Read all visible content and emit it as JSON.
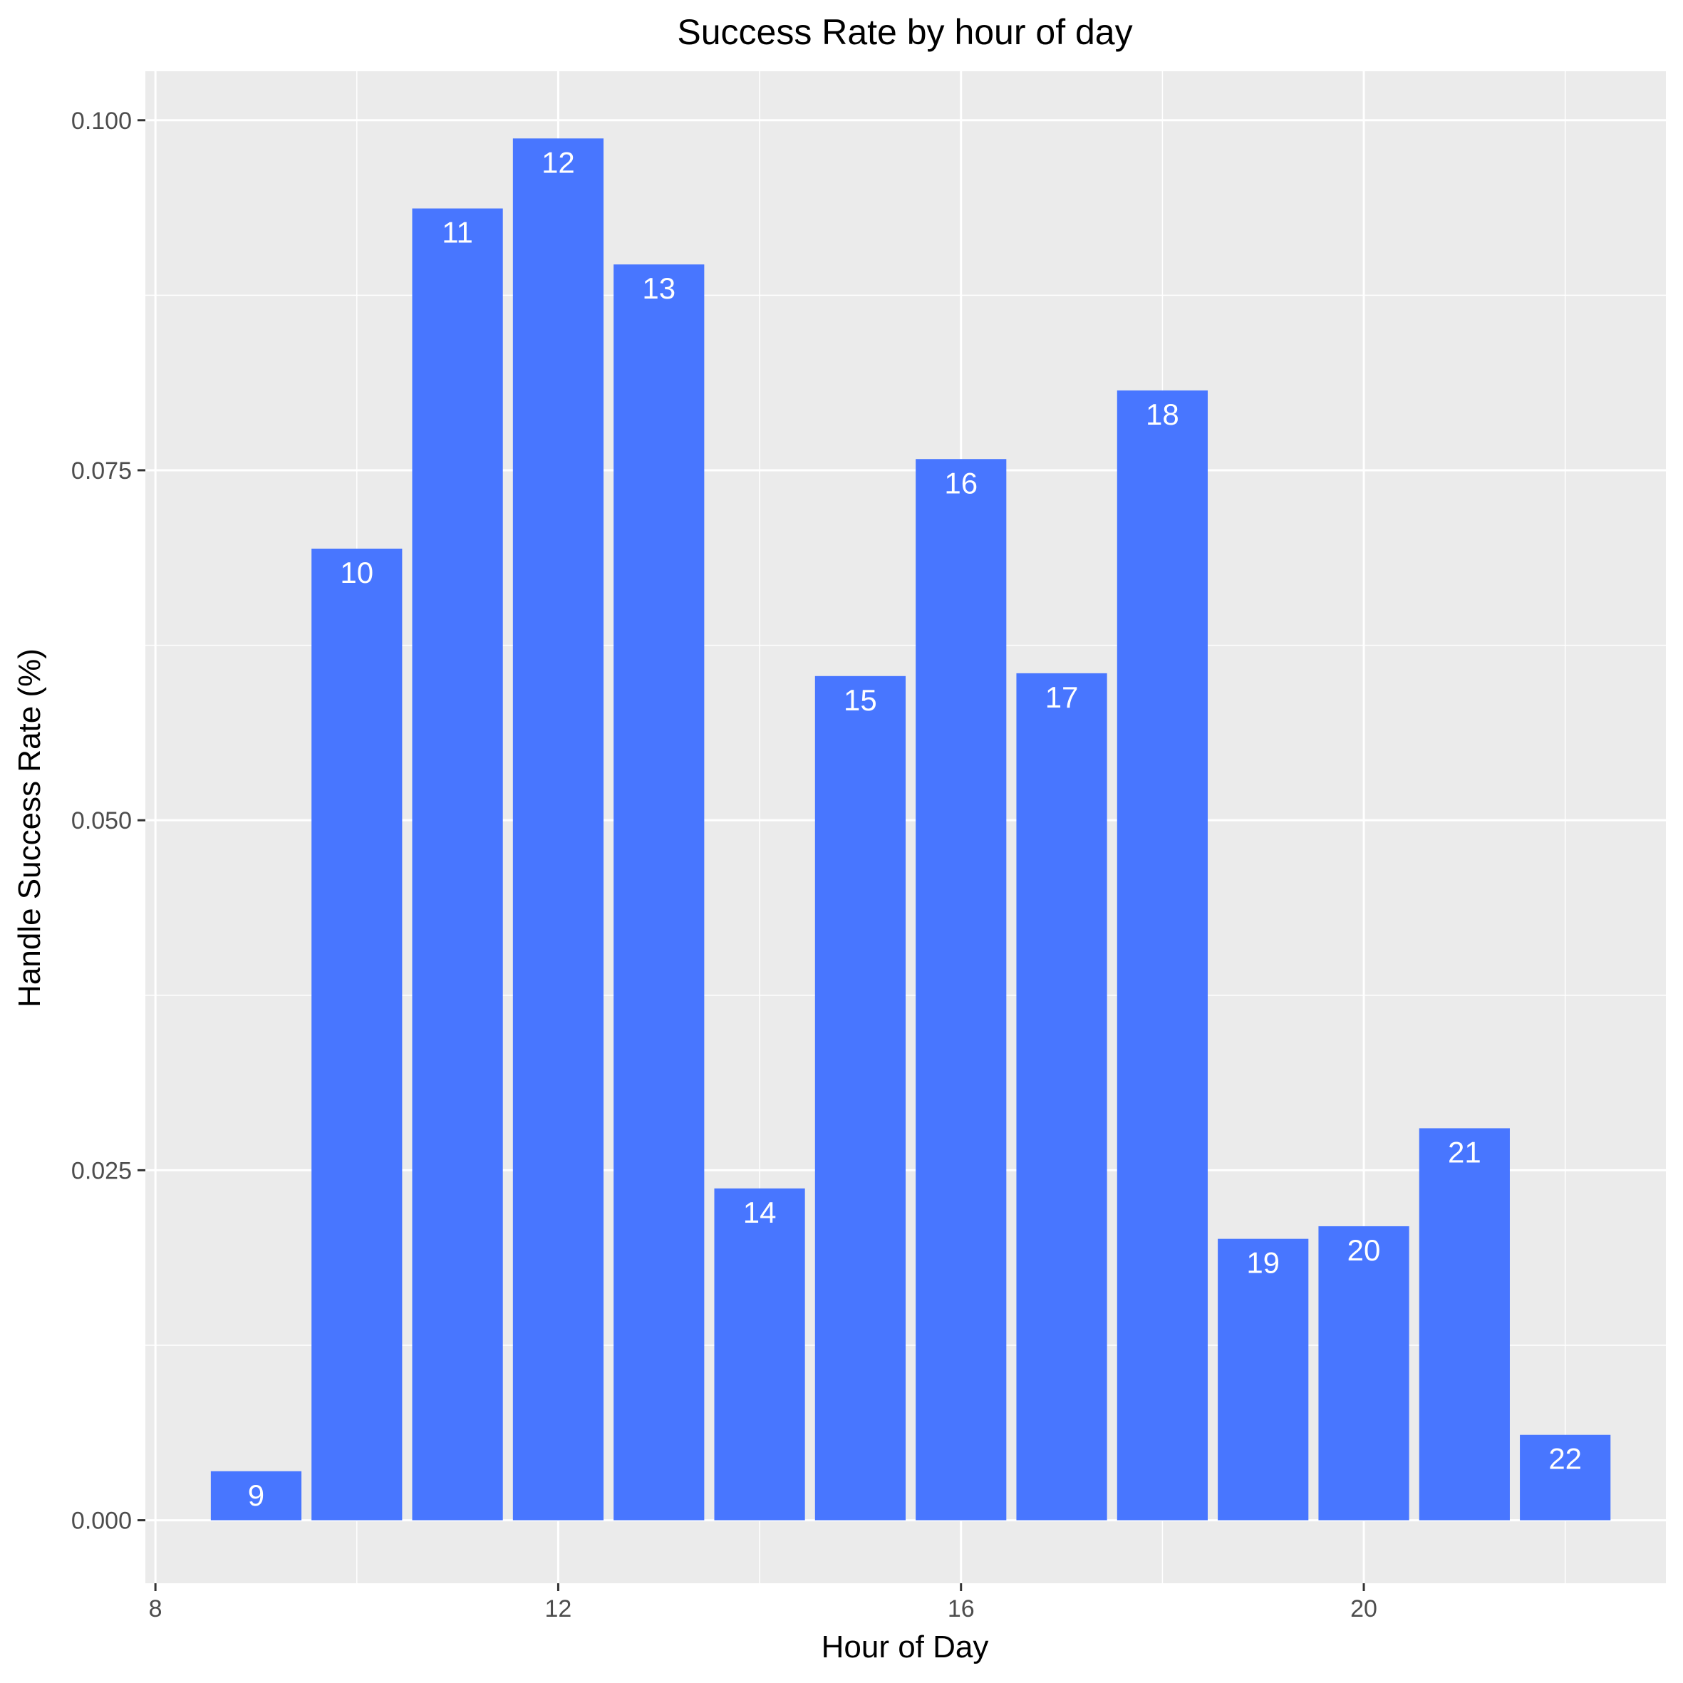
{
  "chart_data": {
    "type": "bar",
    "title": "Success Rate by hour of day",
    "xlabel": "Hour of Day",
    "ylabel": "Handle Success Rate (%)",
    "x": [
      9,
      10,
      11,
      12,
      13,
      14,
      15,
      16,
      17,
      18,
      19,
      20,
      21,
      22
    ],
    "values": [
      0.0035,
      0.0694,
      0.0937,
      0.0987,
      0.0897,
      0.0237,
      0.0603,
      0.0758,
      0.0605,
      0.0807,
      0.0201,
      0.021,
      0.028,
      0.0061
    ],
    "bar_labels": [
      "9",
      "10",
      "11",
      "12",
      "13",
      "14",
      "15",
      "16",
      "17",
      "18",
      "19",
      "20",
      "21",
      "22"
    ],
    "xlim": [
      7.9,
      23.0
    ],
    "ylim": [
      -0.0045,
      0.1035
    ],
    "x_ticks": [
      8,
      12,
      16,
      20
    ],
    "x_tick_labels": [
      "8",
      "12",
      "16",
      "20"
    ],
    "y_ticks": [
      0,
      0.025,
      0.05,
      0.075,
      0.1
    ],
    "y_tick_labels": [
      "0.000",
      "0.025",
      "0.050",
      "0.075",
      "0.100"
    ],
    "grid": true,
    "colors": {
      "bar": "#4876ff",
      "panel": "#ebebeb",
      "grid": "#ffffff",
      "tick_label": "#4d4d4d",
      "tick_mark": "#333333",
      "bar_label": "#ffffff"
    }
  }
}
